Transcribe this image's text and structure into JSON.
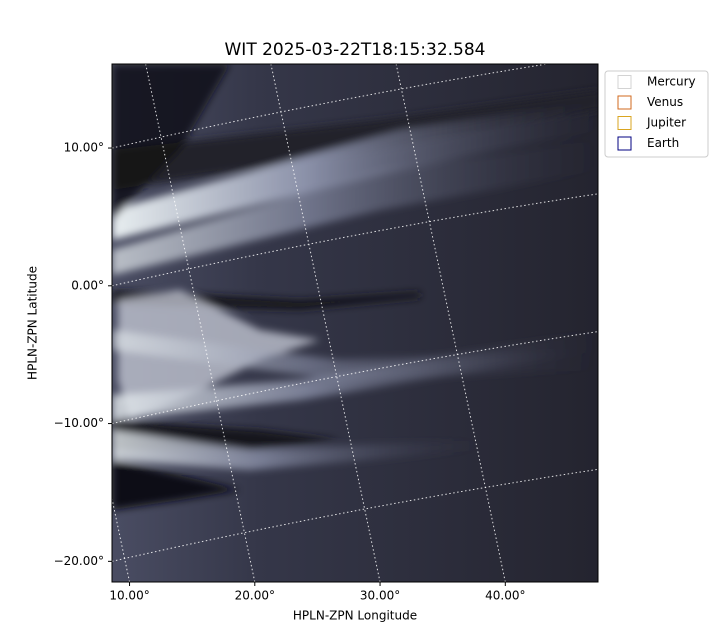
{
  "chart_data": {
    "type": "image",
    "title": "WIT 2025-03-22T18:15:32.584",
    "xlabel": "HPLN-ZPN Longitude",
    "ylabel": "HPLN-ZPN Latitude",
    "xlim": [
      8.6,
      47.4
    ],
    "ylim": [
      -21.5,
      16.1
    ],
    "xticks": [
      {
        "value": 10,
        "label": "10.00°"
      },
      {
        "value": 20,
        "label": "20.00°"
      },
      {
        "value": 30,
        "label": "30.00°"
      },
      {
        "value": 40,
        "label": "40.00°"
      }
    ],
    "yticks": [
      {
        "value": -20,
        "label": "−20.00°"
      },
      {
        "value": -10,
        "label": "−10.00°"
      },
      {
        "value": 0,
        "label": "0.00°"
      },
      {
        "value": 10,
        "label": "10.00°"
      }
    ],
    "grid": true,
    "legend": "upper right",
    "series": [
      {
        "name": "Mercury",
        "color": "#d3d3d3"
      },
      {
        "name": "Venus",
        "color": "#d2691e"
      },
      {
        "name": "Jupiter",
        "color": "#daa520"
      },
      {
        "name": "Earth",
        "color": "#000080"
      }
    ]
  }
}
